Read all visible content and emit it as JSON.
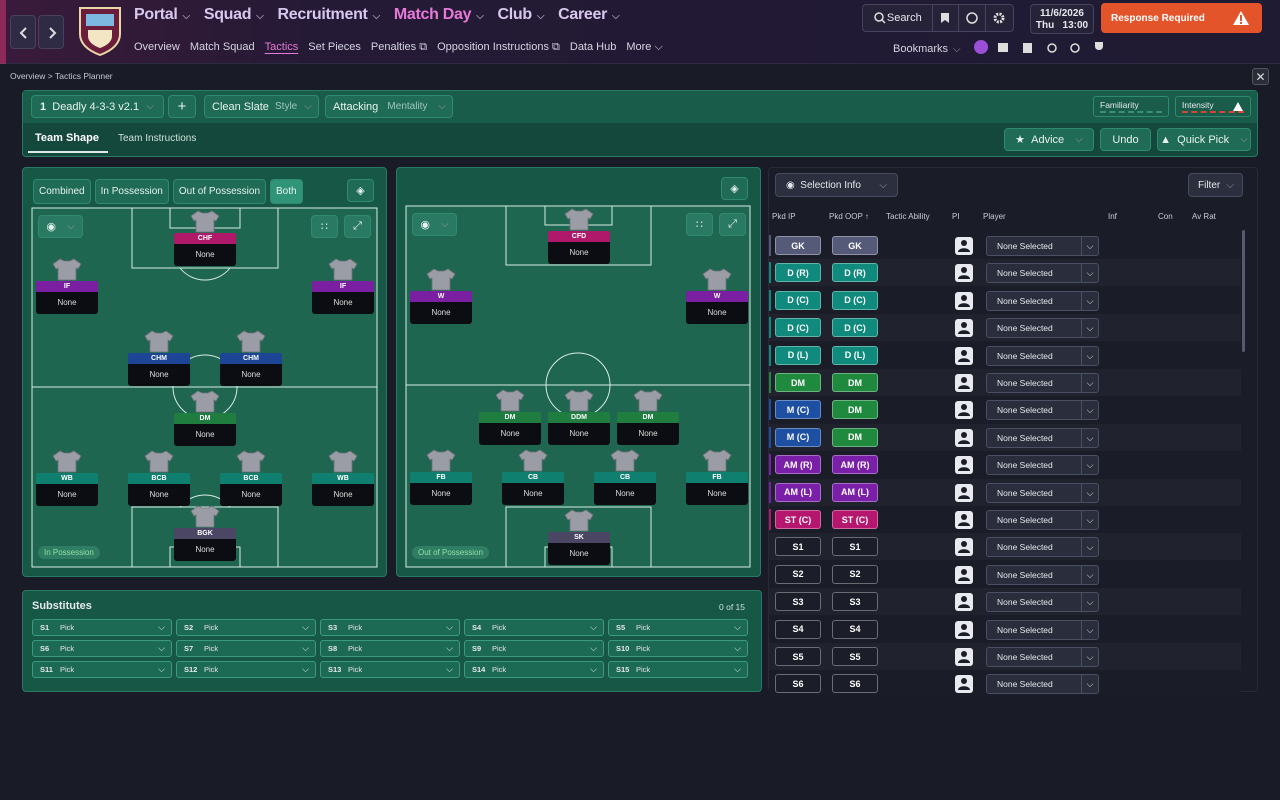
{
  "nav": {
    "menus": [
      "Portal",
      "Squad",
      "Recruitment",
      "Match Day",
      "Club",
      "Career"
    ],
    "submenu": [
      "Overview",
      "Match Squad",
      "Tactics",
      "Set Pieces",
      "Penalties",
      "Opposition Instructions",
      "Data Hub",
      "More"
    ],
    "search": "Search",
    "date": "11/6/2026",
    "day": "Thu",
    "time": "13:00",
    "alert": "Response Required",
    "bookmarks": "Bookmarks"
  },
  "breadcrumb": [
    "Overview",
    "Tactics Planner"
  ],
  "tactic": {
    "slot": "1",
    "name": "Deadly 4-3-3 v2.1",
    "style_value": "Clean Slate",
    "style_label": "Style",
    "mentality_value": "Attacking",
    "mentality_label": "Mentality",
    "familiarity": "Familiarity",
    "intensity": "Intensity"
  },
  "tabs": [
    "Team Shape",
    "Team Instructions"
  ],
  "actions": [
    "Advice",
    "Undo",
    "Quick Pick"
  ],
  "shape_filters": [
    "Combined",
    "In Possession",
    "Out of Possession",
    "Both"
  ],
  "in_possession": {
    "caption": "In Possession",
    "positions": [
      {
        "role": "CHF",
        "player": "None"
      },
      {
        "role": "IF",
        "player": "None"
      },
      {
        "role": "IF",
        "player": "None"
      },
      {
        "role": "CHM",
        "player": "None"
      },
      {
        "role": "CHM",
        "player": "None"
      },
      {
        "role": "DM",
        "player": "None"
      },
      {
        "role": "WB",
        "player": "None"
      },
      {
        "role": "BCB",
        "player": "None"
      },
      {
        "role": "BCB",
        "player": "None"
      },
      {
        "role": "WB",
        "player": "None"
      },
      {
        "role": "BGK",
        "player": "None"
      }
    ]
  },
  "out_of_possession": {
    "caption": "Out of Possession",
    "positions": [
      {
        "role": "CFD",
        "player": "None"
      },
      {
        "role": "W",
        "player": "None"
      },
      {
        "role": "W",
        "player": "None"
      },
      {
        "role": "DM",
        "player": "None"
      },
      {
        "role": "DDM",
        "player": "None"
      },
      {
        "role": "DM",
        "player": "None"
      },
      {
        "role": "FB",
        "player": "None"
      },
      {
        "role": "CB",
        "player": "None"
      },
      {
        "role": "CB",
        "player": "None"
      },
      {
        "role": "FB",
        "player": "None"
      },
      {
        "role": "SK",
        "player": "None"
      }
    ]
  },
  "substitutes": {
    "title": "Substitutes",
    "count": "0 of 15",
    "slots": [
      {
        "slot": "S1",
        "value": "Pick"
      },
      {
        "slot": "S2",
        "value": "Pick"
      },
      {
        "slot": "S3",
        "value": "Pick"
      },
      {
        "slot": "S4",
        "value": "Pick"
      },
      {
        "slot": "S5",
        "value": "Pick"
      },
      {
        "slot": "S6",
        "value": "Pick"
      },
      {
        "slot": "S7",
        "value": "Pick"
      },
      {
        "slot": "S8",
        "value": "Pick"
      },
      {
        "slot": "S9",
        "value": "Pick"
      },
      {
        "slot": "S10",
        "value": "Pick"
      },
      {
        "slot": "S11",
        "value": "Pick"
      },
      {
        "slot": "S12",
        "value": "Pick"
      },
      {
        "slot": "S13",
        "value": "Pick"
      },
      {
        "slot": "S14",
        "value": "Pick"
      },
      {
        "slot": "S15",
        "value": "Pick"
      }
    ]
  },
  "selection": {
    "title": "Selection Info",
    "filter": "Filter",
    "columns": [
      "Pkd IP",
      "Pkd OOP",
      "Tactic Ability",
      "PI",
      "Player",
      "Inf",
      "Con",
      "Av Rat"
    ],
    "rows": [
      {
        "ip": "GK",
        "oop": "GK",
        "player": "None Selected"
      },
      {
        "ip": "D (R)",
        "oop": "D (R)",
        "player": "None Selected"
      },
      {
        "ip": "D (C)",
        "oop": "D (C)",
        "player": "None Selected"
      },
      {
        "ip": "D (C)",
        "oop": "D (C)",
        "player": "None Selected"
      },
      {
        "ip": "D (L)",
        "oop": "D (L)",
        "player": "None Selected"
      },
      {
        "ip": "DM",
        "oop": "DM",
        "player": "None Selected"
      },
      {
        "ip": "M (C)",
        "oop": "DM",
        "player": "None Selected"
      },
      {
        "ip": "M (C)",
        "oop": "DM",
        "player": "None Selected"
      },
      {
        "ip": "AM (R)",
        "oop": "AM (R)",
        "player": "None Selected"
      },
      {
        "ip": "AM (L)",
        "oop": "AM (L)",
        "player": "None Selected"
      },
      {
        "ip": "ST (C)",
        "oop": "ST (C)",
        "player": "None Selected"
      },
      {
        "ip": "S1",
        "oop": "S1",
        "player": "None Selected"
      },
      {
        "ip": "S2",
        "oop": "S2",
        "player": "None Selected"
      },
      {
        "ip": "S3",
        "oop": "S3",
        "player": "None Selected"
      },
      {
        "ip": "S4",
        "oop": "S4",
        "player": "None Selected"
      },
      {
        "ip": "S5",
        "oop": "S5",
        "player": "None Selected"
      },
      {
        "ip": "S6",
        "oop": "S6",
        "player": "None Selected"
      }
    ]
  }
}
